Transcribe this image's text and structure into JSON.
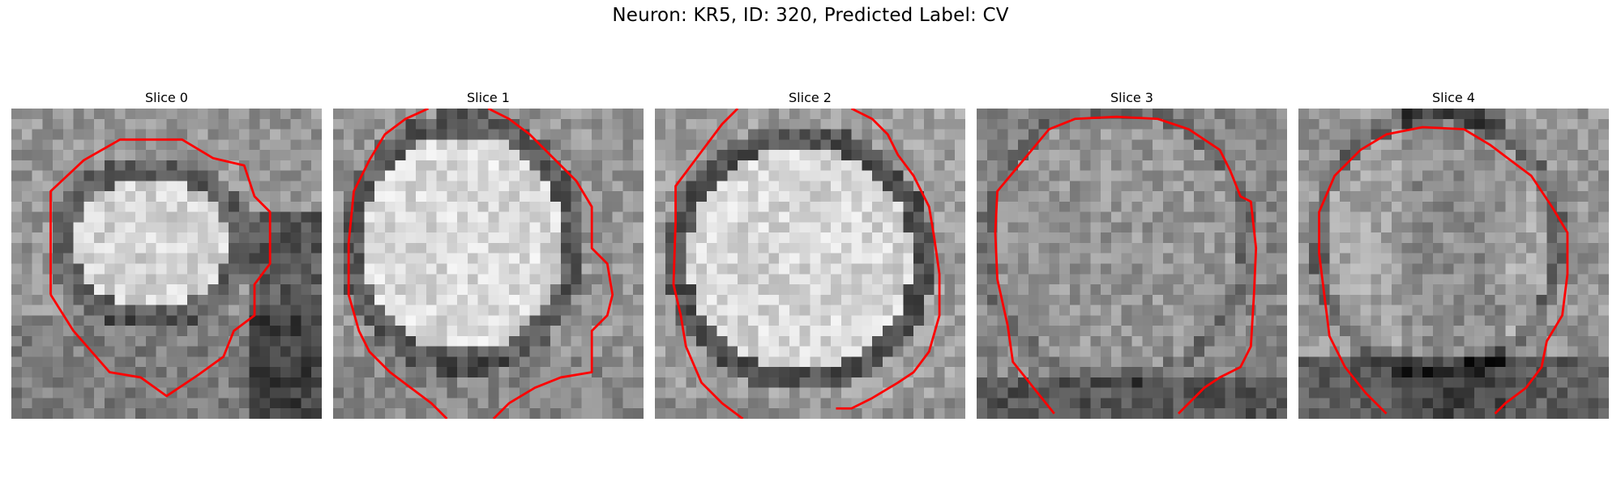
{
  "figure": {
    "title": "Neuron: KR5, ID: 320, Predicted Label: CV"
  },
  "panels": [
    {
      "label": "Slice 0"
    },
    {
      "label": "Slice 1"
    },
    {
      "label": "Slice 2"
    },
    {
      "label": "Slice 3"
    },
    {
      "label": "Slice 4"
    }
  ],
  "colors": {
    "contour": "#ff0000",
    "background": "#ffffff"
  }
}
